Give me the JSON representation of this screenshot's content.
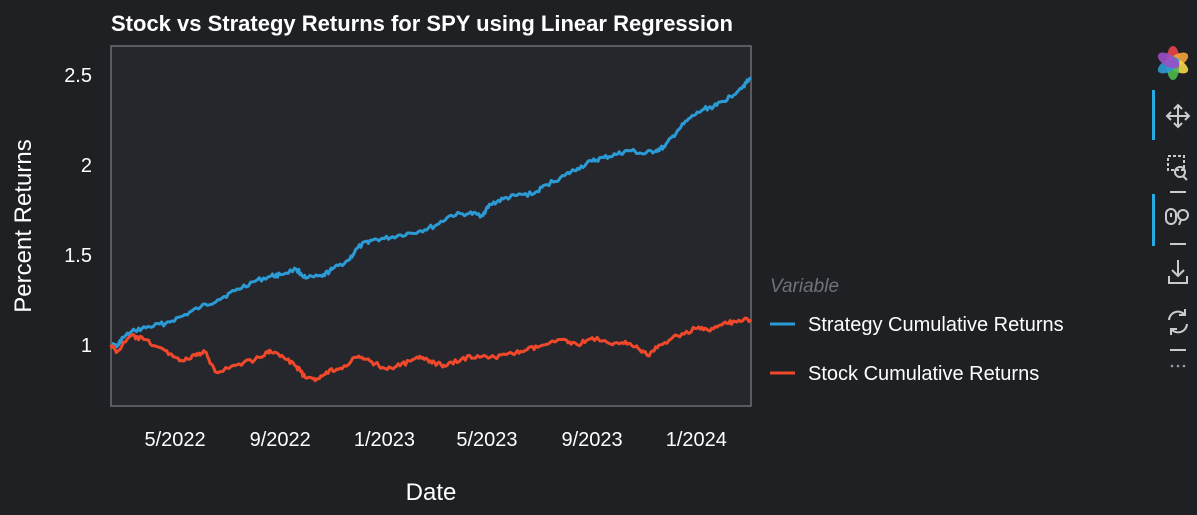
{
  "chart_data": {
    "type": "line",
    "title": "Stock vs Strategy Returns for SPY using Linear Regression",
    "xlabel": "Date",
    "ylabel": "Percent Returns",
    "x_ticks": [
      "5/2022",
      "9/2022",
      "1/2023",
      "5/2023",
      "9/2023",
      "1/2024"
    ],
    "y_ticks": [
      "1",
      "1.5",
      "2",
      "2.5"
    ],
    "y_tick_values": [
      1,
      1.5,
      2,
      2.5
    ],
    "xlim": [
      "2022-02-15",
      "2024-03-05"
    ],
    "ylim": [
      0.66,
      2.66
    ],
    "grid": false,
    "legend": {
      "title": "Variable",
      "position": "right"
    },
    "series": [
      {
        "name": "Strategy Cumulative Returns",
        "color": "#2b9ad5",
        "points": [
          [
            "2022-02-15",
            1.0
          ],
          [
            "2022-02-22",
            0.99
          ],
          [
            "2022-03-01",
            1.04
          ],
          [
            "2022-03-15",
            1.08
          ],
          [
            "2022-04-01",
            1.1
          ],
          [
            "2022-04-20",
            1.12
          ],
          [
            "2022-05-10",
            1.16
          ],
          [
            "2022-05-31",
            1.21
          ],
          [
            "2022-06-20",
            1.25
          ],
          [
            "2022-07-10",
            1.3
          ],
          [
            "2022-07-31",
            1.35
          ],
          [
            "2022-08-20",
            1.38
          ],
          [
            "2022-09-01",
            1.39
          ],
          [
            "2022-09-20",
            1.42
          ],
          [
            "2022-10-01",
            1.37
          ],
          [
            "2022-10-20",
            1.38
          ],
          [
            "2022-11-01",
            1.42
          ],
          [
            "2022-11-20",
            1.47
          ],
          [
            "2022-12-01",
            1.54
          ],
          [
            "2022-12-15",
            1.58
          ],
          [
            "2023-01-01",
            1.59
          ],
          [
            "2023-01-20",
            1.61
          ],
          [
            "2023-02-10",
            1.63
          ],
          [
            "2023-03-01",
            1.66
          ],
          [
            "2023-03-20",
            1.72
          ],
          [
            "2023-04-10",
            1.73
          ],
          [
            "2023-04-25",
            1.72
          ],
          [
            "2023-05-05",
            1.78
          ],
          [
            "2023-05-20",
            1.81
          ],
          [
            "2023-06-05",
            1.83
          ],
          [
            "2023-06-25",
            1.84
          ],
          [
            "2023-07-10",
            1.89
          ],
          [
            "2023-07-31",
            1.94
          ],
          [
            "2023-08-15",
            1.98
          ],
          [
            "2023-09-01",
            2.02
          ],
          [
            "2023-09-15",
            2.04
          ],
          [
            "2023-10-01",
            2.06
          ],
          [
            "2023-10-15",
            2.08
          ],
          [
            "2023-10-31",
            2.06
          ],
          [
            "2023-11-15",
            2.08
          ],
          [
            "2023-11-25",
            2.1
          ],
          [
            "2023-12-10",
            2.19
          ],
          [
            "2023-12-25",
            2.26
          ],
          [
            "2024-01-10",
            2.31
          ],
          [
            "2024-01-25",
            2.33
          ],
          [
            "2024-02-10",
            2.38
          ],
          [
            "2024-02-25",
            2.44
          ],
          [
            "2024-03-05",
            2.48
          ]
        ]
      },
      {
        "name": "Stock Cumulative Returns",
        "color": "#f0482a",
        "points": [
          [
            "2022-02-15",
            1.0
          ],
          [
            "2022-02-22",
            0.96
          ],
          [
            "2022-03-10",
            1.05
          ],
          [
            "2022-03-25",
            1.03
          ],
          [
            "2022-04-10",
            0.99
          ],
          [
            "2022-04-25",
            0.95
          ],
          [
            "2022-05-10",
            0.91
          ],
          [
            "2022-05-25",
            0.94
          ],
          [
            "2022-06-05",
            0.96
          ],
          [
            "2022-06-17",
            0.85
          ],
          [
            "2022-07-01",
            0.87
          ],
          [
            "2022-07-20",
            0.9
          ],
          [
            "2022-08-10",
            0.93
          ],
          [
            "2022-08-20",
            0.97
          ],
          [
            "2022-09-05",
            0.93
          ],
          [
            "2022-09-20",
            0.88
          ],
          [
            "2022-09-30",
            0.82
          ],
          [
            "2022-10-12",
            0.8
          ],
          [
            "2022-10-25",
            0.85
          ],
          [
            "2022-11-10",
            0.87
          ],
          [
            "2022-11-30",
            0.93
          ],
          [
            "2022-12-15",
            0.91
          ],
          [
            "2023-01-01",
            0.87
          ],
          [
            "2023-01-15",
            0.88
          ],
          [
            "2023-02-01",
            0.91
          ],
          [
            "2023-02-15",
            0.93
          ],
          [
            "2023-03-01",
            0.9
          ],
          [
            "2023-03-13",
            0.88
          ],
          [
            "2023-04-01",
            0.92
          ],
          [
            "2023-04-20",
            0.94
          ],
          [
            "2023-05-10",
            0.93
          ],
          [
            "2023-05-31",
            0.95
          ],
          [
            "2023-06-15",
            0.97
          ],
          [
            "2023-07-01",
            0.99
          ],
          [
            "2023-07-31",
            1.03
          ],
          [
            "2023-08-15",
            1.0
          ],
          [
            "2023-09-01",
            1.04
          ],
          [
            "2023-09-25",
            1.0
          ],
          [
            "2023-10-10",
            1.02
          ],
          [
            "2023-10-25",
            0.98
          ],
          [
            "2023-11-05",
            0.94
          ],
          [
            "2023-11-20",
            1.0
          ],
          [
            "2023-12-10",
            1.05
          ],
          [
            "2023-12-31",
            1.09
          ],
          [
            "2024-01-15",
            1.08
          ],
          [
            "2024-01-31",
            1.11
          ],
          [
            "2024-02-15",
            1.13
          ],
          [
            "2024-03-05",
            1.14
          ]
        ]
      }
    ]
  },
  "toolbar": {
    "logo": "bokeh-logo-icon",
    "tools": [
      "pan-icon",
      "box-zoom-icon",
      "wheel-zoom-icon",
      "save-icon",
      "reset-icon",
      "more-icon"
    ],
    "active_color": "#26aae1"
  }
}
